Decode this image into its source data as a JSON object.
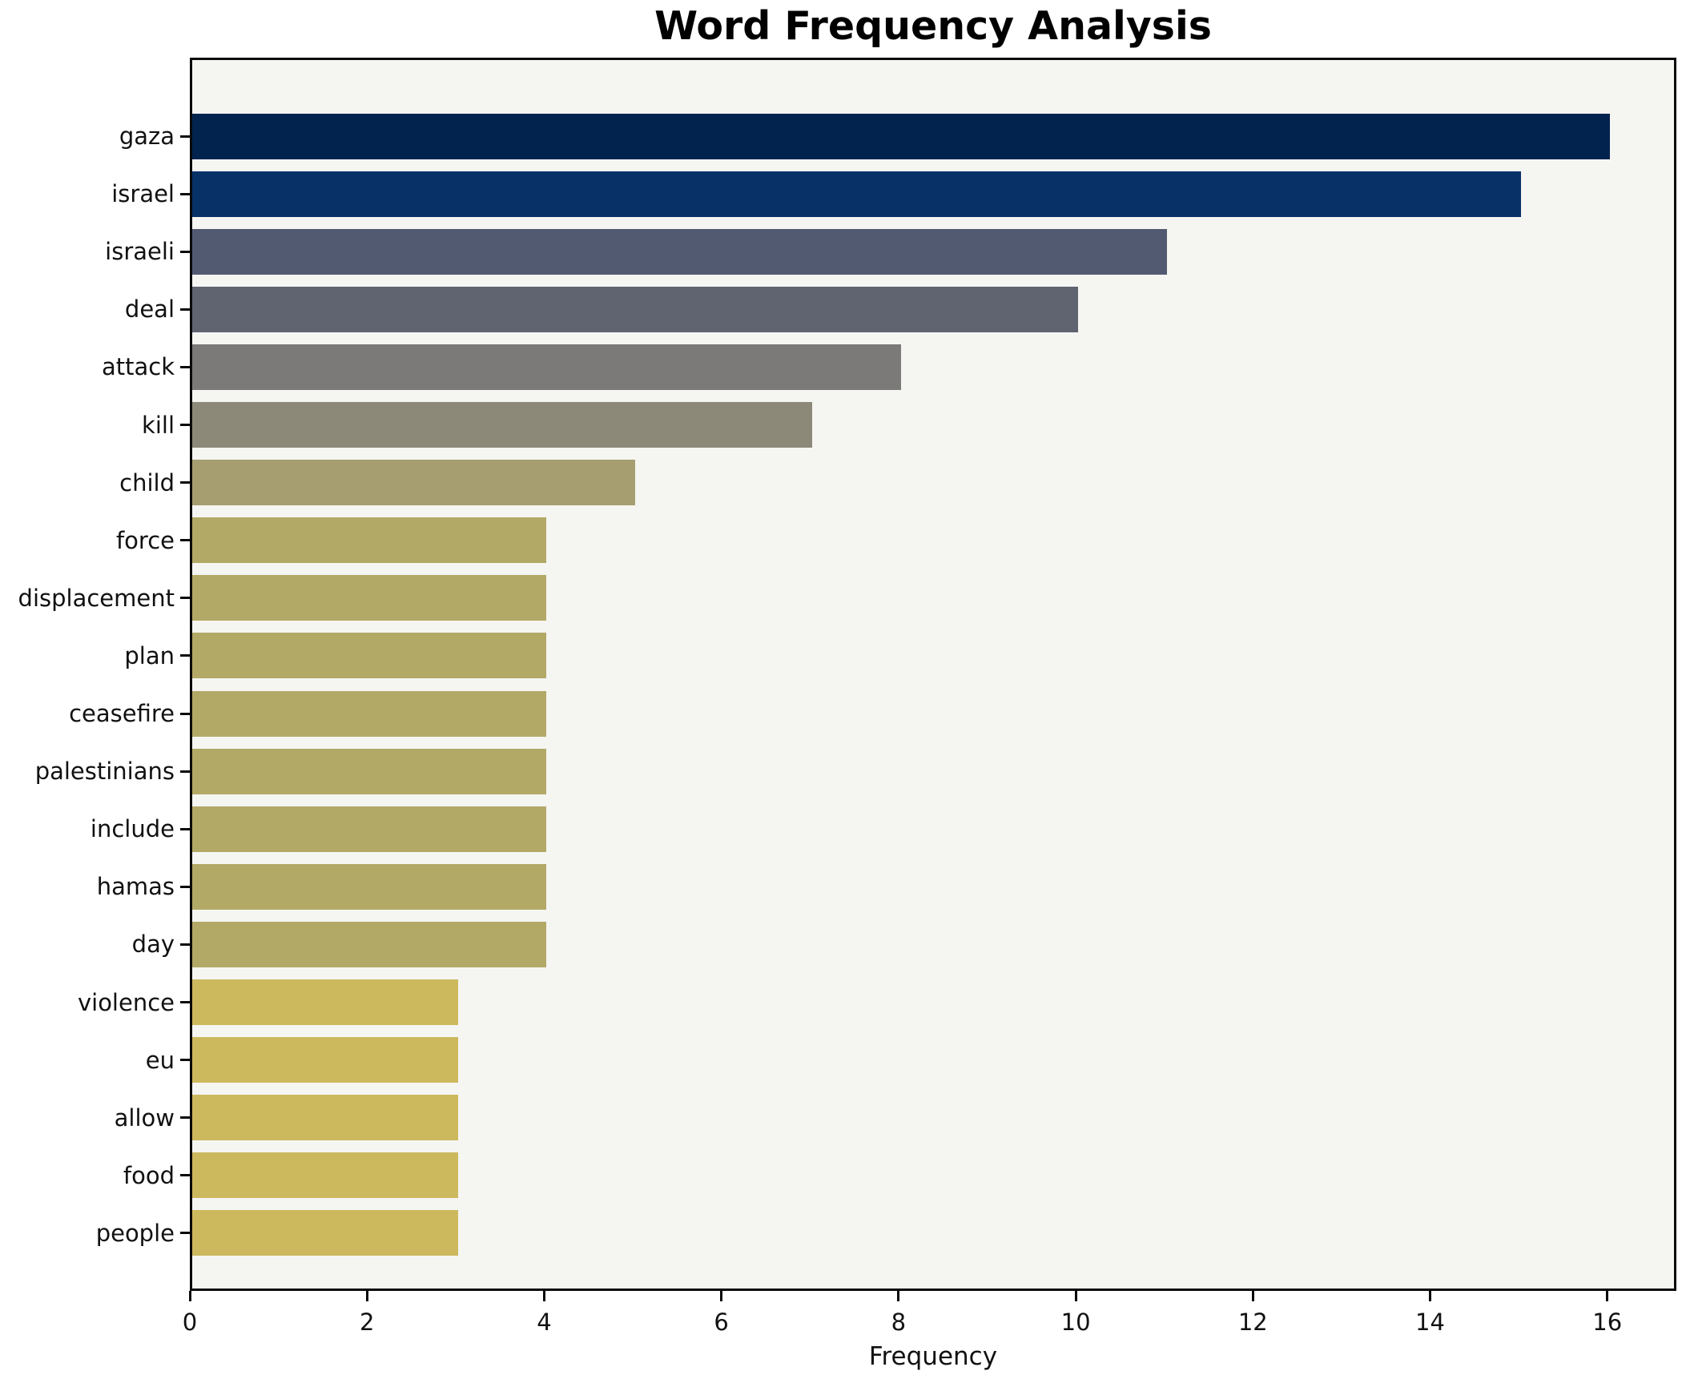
{
  "chart_data": {
    "type": "bar",
    "orientation": "horizontal",
    "title": "Word Frequency Analysis",
    "xlabel": "Frequency",
    "ylabel": "",
    "categories": [
      "gaza",
      "israel",
      "israeli",
      "deal",
      "attack",
      "kill",
      "child",
      "force",
      "displacement",
      "plan",
      "ceasefire",
      "palestinians",
      "include",
      "hamas",
      "day",
      "violence",
      "eu",
      "allow",
      "food",
      "people"
    ],
    "values": [
      16,
      15,
      11,
      10,
      8,
      7,
      5,
      4,
      4,
      4,
      4,
      4,
      4,
      4,
      4,
      3,
      3,
      3,
      3,
      3
    ],
    "bar_colors": [
      "#02234d",
      "#083168",
      "#525a72",
      "#606471",
      "#7b7a78",
      "#8c8979",
      "#a69e71",
      "#b3a967",
      "#b3a967",
      "#b3a967",
      "#b3a967",
      "#b3a967",
      "#b3a967",
      "#b3a967",
      "#b3a967",
      "#ccb95e",
      "#ccb95e",
      "#ccb95e",
      "#ccb95e",
      "#ccb95e"
    ],
    "xticks": [
      0,
      2,
      4,
      6,
      8,
      10,
      12,
      14,
      16
    ],
    "xlim": [
      0,
      16.78
    ],
    "grid": false,
    "legend": null,
    "plot_background": "#f5f5f2",
    "figure_background": "#ffffff",
    "axis_color": "#0a0a0a",
    "text_color": "#111111"
  }
}
